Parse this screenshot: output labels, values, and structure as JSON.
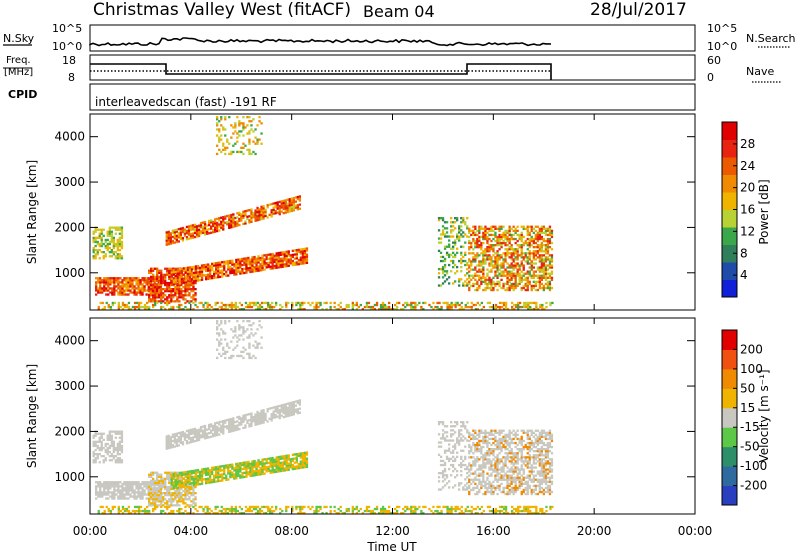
{
  "header": {
    "title": "Christmas Valley West (fitACF)",
    "beam": "Beam 04",
    "date": "28/Jul/2017"
  },
  "panels": {
    "nsky": {
      "left_label": "N.Sky",
      "ticks_left": [
        "10^5",
        "10^0"
      ],
      "ticks_right": [
        "10^5",
        "10^0"
      ],
      "right_label": "N.Search"
    },
    "freq": {
      "left_label_1": "Freq.",
      "left_label_2": "[MHz]",
      "ticks_left": [
        "18",
        "8"
      ],
      "ticks_right": [
        "60",
        "0"
      ],
      "right_label": "Nave"
    },
    "cpid": {
      "label": "CPID",
      "mode": "interleavedscan (fast) -191 RF"
    }
  },
  "chart_data": [
    {
      "type": "heatmap",
      "name": "power",
      "ylabel": "Slant Range [km]",
      "ytick_labels": [
        "1000",
        "2000",
        "3000",
        "4000"
      ],
      "ylim": [
        180,
        4500
      ],
      "colorbar": {
        "label": "Power [dB]",
        "tick_labels": [
          "4",
          "8",
          "12",
          "16",
          "20",
          "24",
          "28"
        ],
        "range": [
          0,
          32
        ],
        "colors": [
          "#1020d8",
          "#1e4ca8",
          "#2f7f5a",
          "#3aa84a",
          "#b8d234",
          "#f0b400",
          "#f08a00",
          "#ec5a00",
          "#e82410",
          "#e00000"
        ]
      }
    },
    {
      "type": "heatmap",
      "name": "velocity",
      "ylabel": "Slant Range [km]",
      "ytick_labels": [
        "1000",
        "2000",
        "3000",
        "4000"
      ],
      "ylim": [
        180,
        4500
      ],
      "colorbar": {
        "label": "Velocity [m s⁻¹]",
        "tick_labels": [
          "200",
          "100",
          "50",
          "15",
          "-15",
          "-50",
          "-100",
          "-200"
        ],
        "colors": [
          "#2a3fc0",
          "#2e6aa0",
          "#2d8f6a",
          "#5cc848",
          "#c8c8c0",
          "#f0b400",
          "#f08a00",
          "#f05010",
          "#e00000"
        ]
      }
    }
  ],
  "xaxis": {
    "label": "Time UT",
    "tick_labels": [
      "00:00",
      "04:00",
      "08:00",
      "12:00",
      "16:00",
      "20:00",
      "00:00"
    ]
  }
}
